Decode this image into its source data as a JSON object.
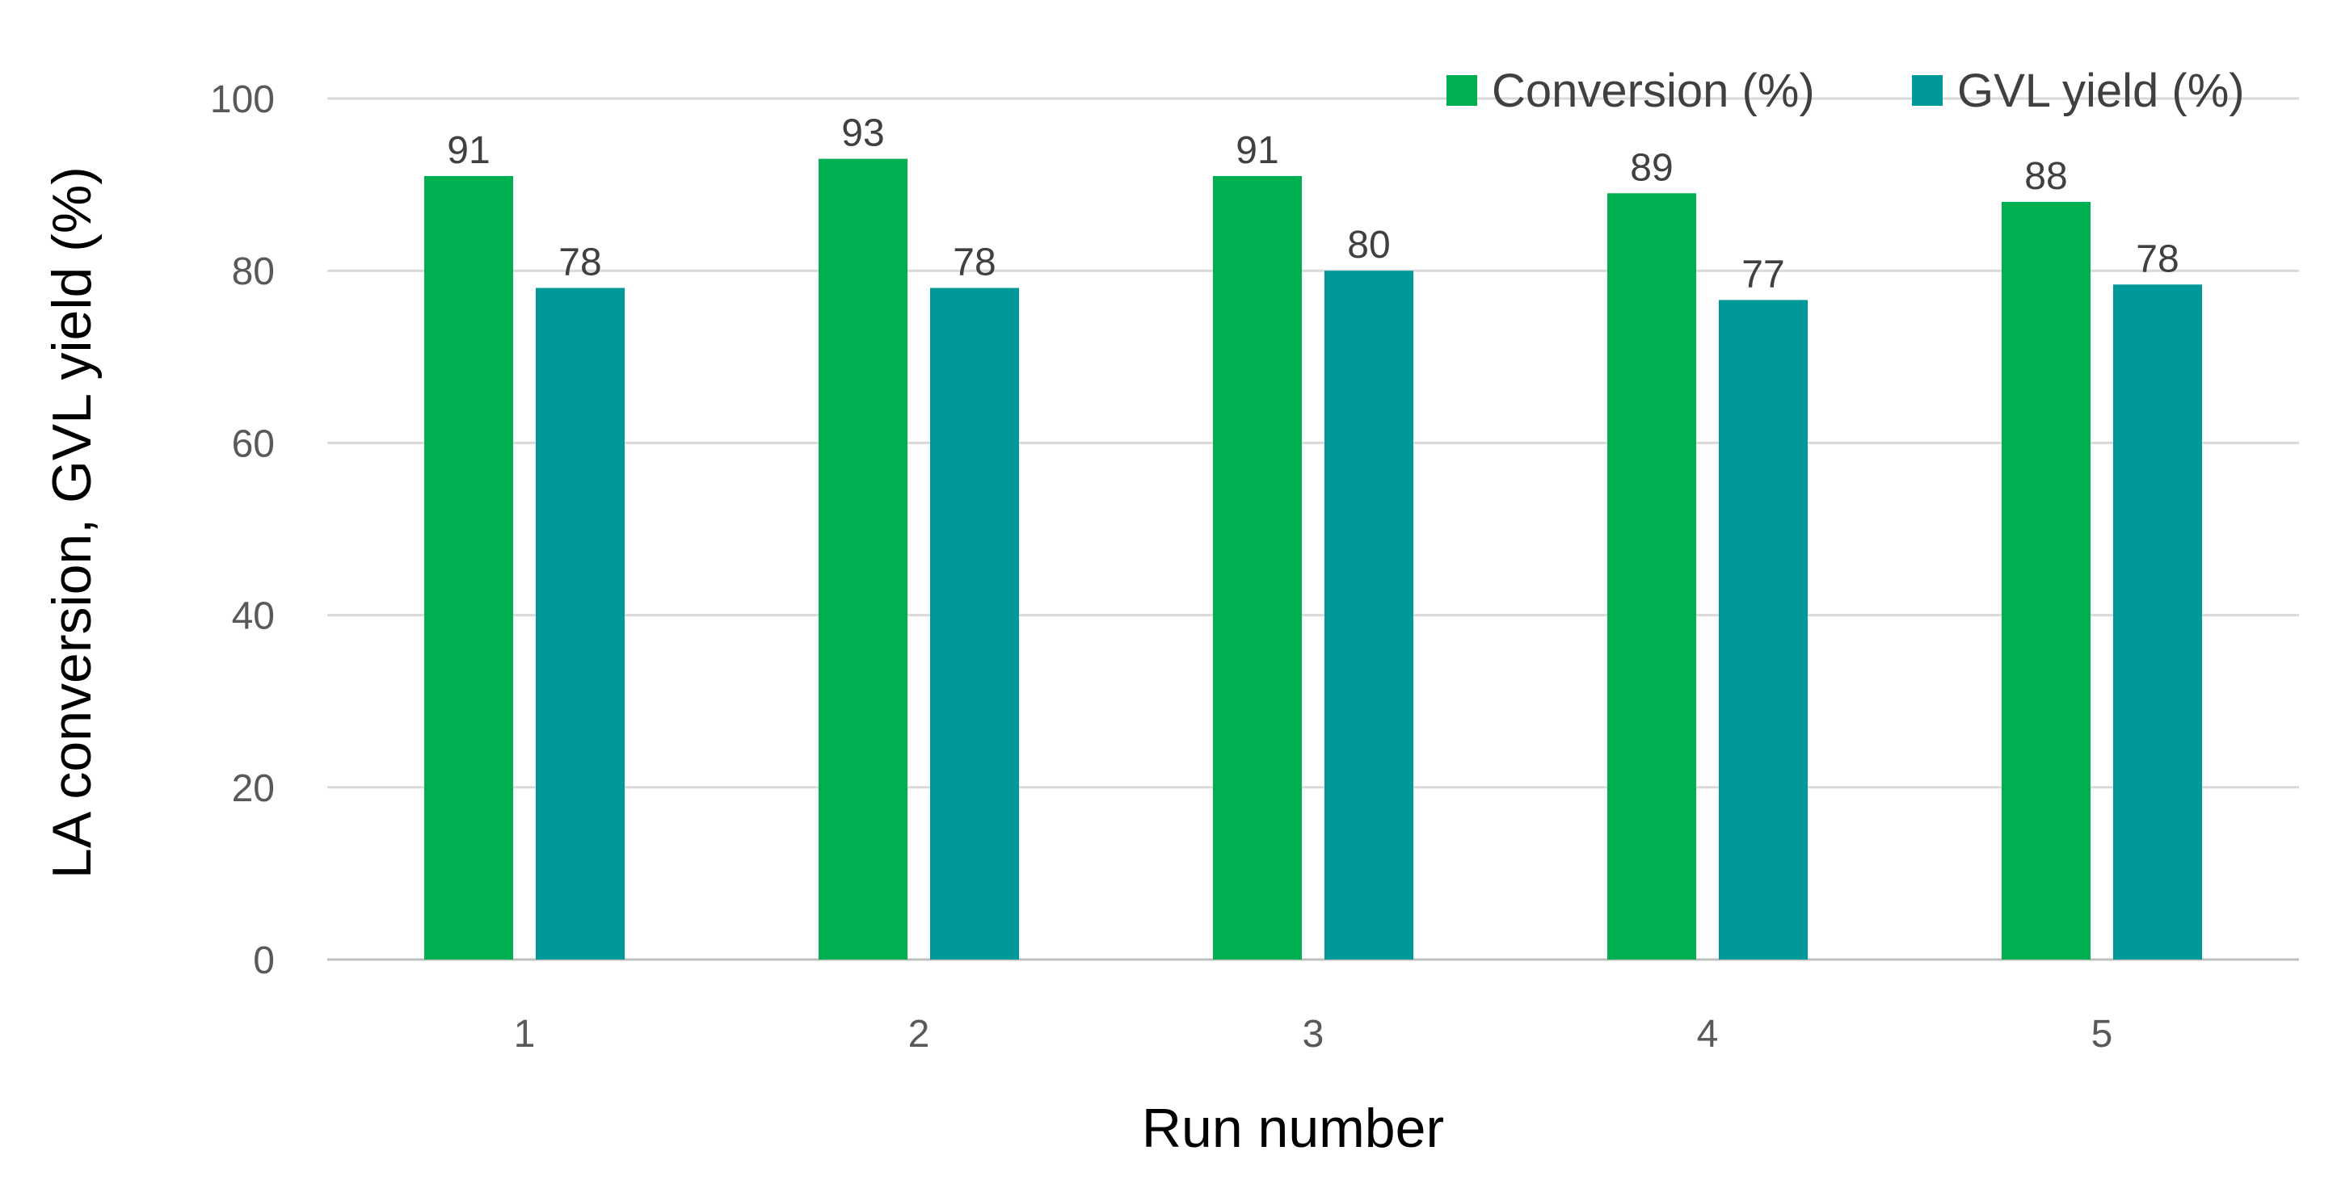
{
  "chart_data": {
    "type": "bar",
    "title": "",
    "xlabel": "Run number",
    "ylabel": "LA conversion, GVL yield (%)",
    "categories": [
      "1",
      "2",
      "3",
      "4",
      "5"
    ],
    "series": [
      {
        "name": "Conversion (%)",
        "color": "#00b050",
        "values": [
          91,
          93,
          91,
          89,
          88
        ],
        "labels": [
          "91",
          "93",
          "91",
          "89",
          "88"
        ]
      },
      {
        "name": "GVL yield (%)",
        "color": "#009999",
        "values": [
          78,
          78,
          80,
          76.6,
          78.4
        ],
        "labels": [
          "78",
          "78",
          "80",
          "77",
          "78"
        ]
      }
    ],
    "ylim": [
      0,
      100
    ],
    "yticks": [
      "0",
      "20",
      "40",
      "60",
      "80",
      "100"
    ],
    "grid": true,
    "legend_position": "top-right"
  }
}
